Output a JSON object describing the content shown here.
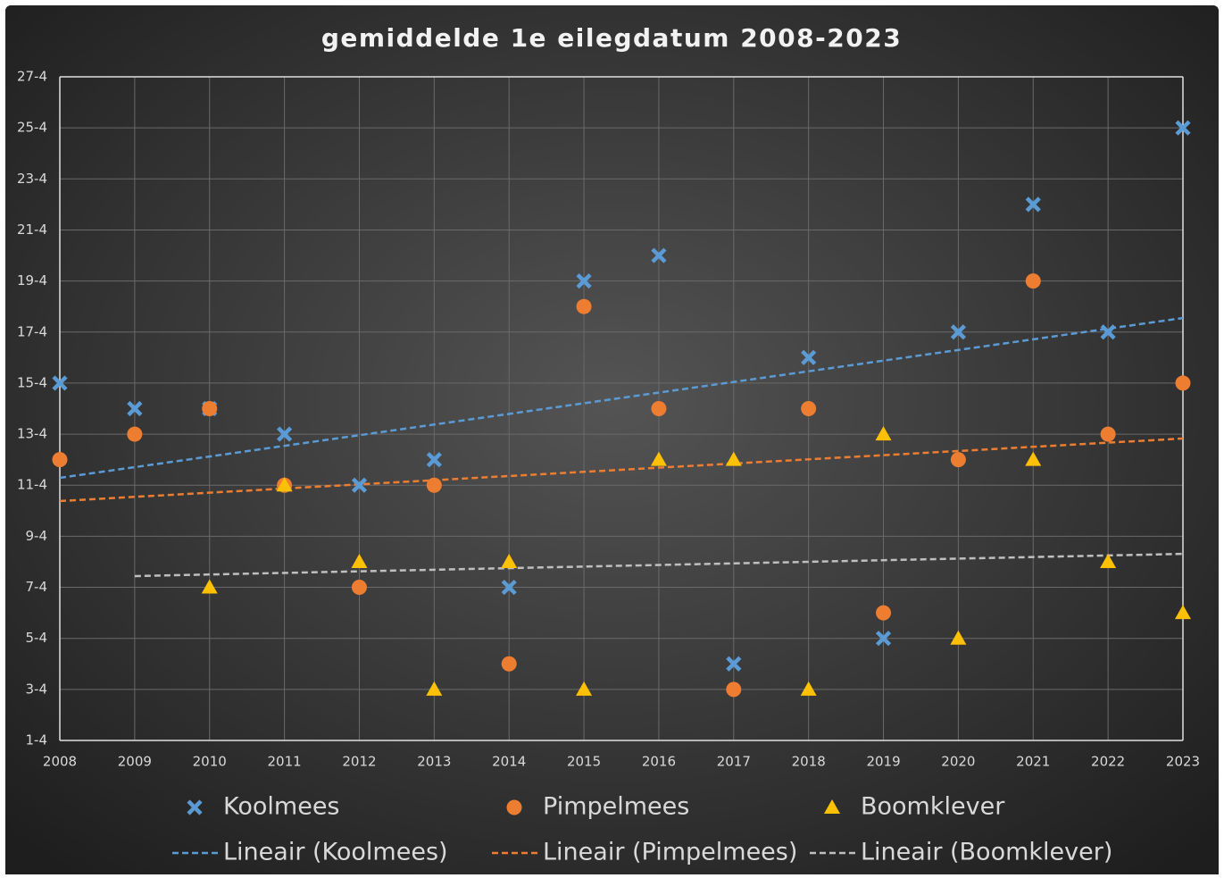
{
  "chart_data": {
    "type": "scatter",
    "title": "gemiddelde 1e eilegdatum 2008-2023",
    "x": [
      2008,
      2009,
      2010,
      2011,
      2012,
      2013,
      2014,
      2015,
      2016,
      2017,
      2018,
      2019,
      2020,
      2021,
      2022,
      2023
    ],
    "xlim": [
      2008,
      2023
    ],
    "xticks": [
      2008,
      2009,
      2010,
      2011,
      2012,
      2013,
      2014,
      2015,
      2016,
      2017,
      2018,
      2019,
      2020,
      2021,
      2022,
      2023
    ],
    "ylim": [
      1,
      27
    ],
    "yticks": [
      {
        "value": 1,
        "label": "1-4"
      },
      {
        "value": 3,
        "label": "3-4"
      },
      {
        "value": 5,
        "label": "5-4"
      },
      {
        "value": 7,
        "label": "7-4"
      },
      {
        "value": 9,
        "label": "9-4"
      },
      {
        "value": 11,
        "label": "11-4"
      },
      {
        "value": 13,
        "label": "13-4"
      },
      {
        "value": 15,
        "label": "15-4"
      },
      {
        "value": 17,
        "label": "17-4"
      },
      {
        "value": 19,
        "label": "19-4"
      },
      {
        "value": 21,
        "label": "21-4"
      },
      {
        "value": 23,
        "label": "23-4"
      },
      {
        "value": 25,
        "label": "25-4"
      },
      {
        "value": 27,
        "label": "27-4"
      }
    ],
    "grid": true,
    "series": [
      {
        "name": "Koolmees",
        "color": "#5b9bd5",
        "marker": "x",
        "values": [
          15,
          14,
          14,
          13,
          11,
          12,
          7,
          19,
          20,
          4,
          16,
          5,
          17,
          22,
          17,
          25
        ]
      },
      {
        "name": "Pimpelmees",
        "color": "#ed7d31",
        "marker": "circle",
        "values": [
          12,
          13,
          14,
          11,
          7,
          11,
          4,
          18,
          14,
          3,
          14,
          6,
          12,
          19,
          13,
          15
        ]
      },
      {
        "name": "Boomklever",
        "color": "#ffc000",
        "marker": "triangle",
        "values": [
          null,
          null,
          7,
          11,
          8,
          3,
          8,
          3,
          12,
          12,
          3,
          13,
          5,
          12,
          8,
          6
        ]
      }
    ],
    "trendlines": [
      {
        "name": "Lineair (Koolmees)",
        "color": "#5b9bd5",
        "x": [
          2008,
          2023
        ],
        "values": [
          11.29,
          17.55
        ]
      },
      {
        "name": "Lineair (Pimpelmees)",
        "color": "#ed7d31",
        "x": [
          2008,
          2023
        ],
        "values": [
          10.38,
          12.83
        ]
      },
      {
        "name": "Lineair (Boomklever)",
        "color": "#bfbfbf",
        "x": [
          2009,
          2023
        ],
        "values": [
          7.44,
          8.31
        ]
      }
    ]
  }
}
